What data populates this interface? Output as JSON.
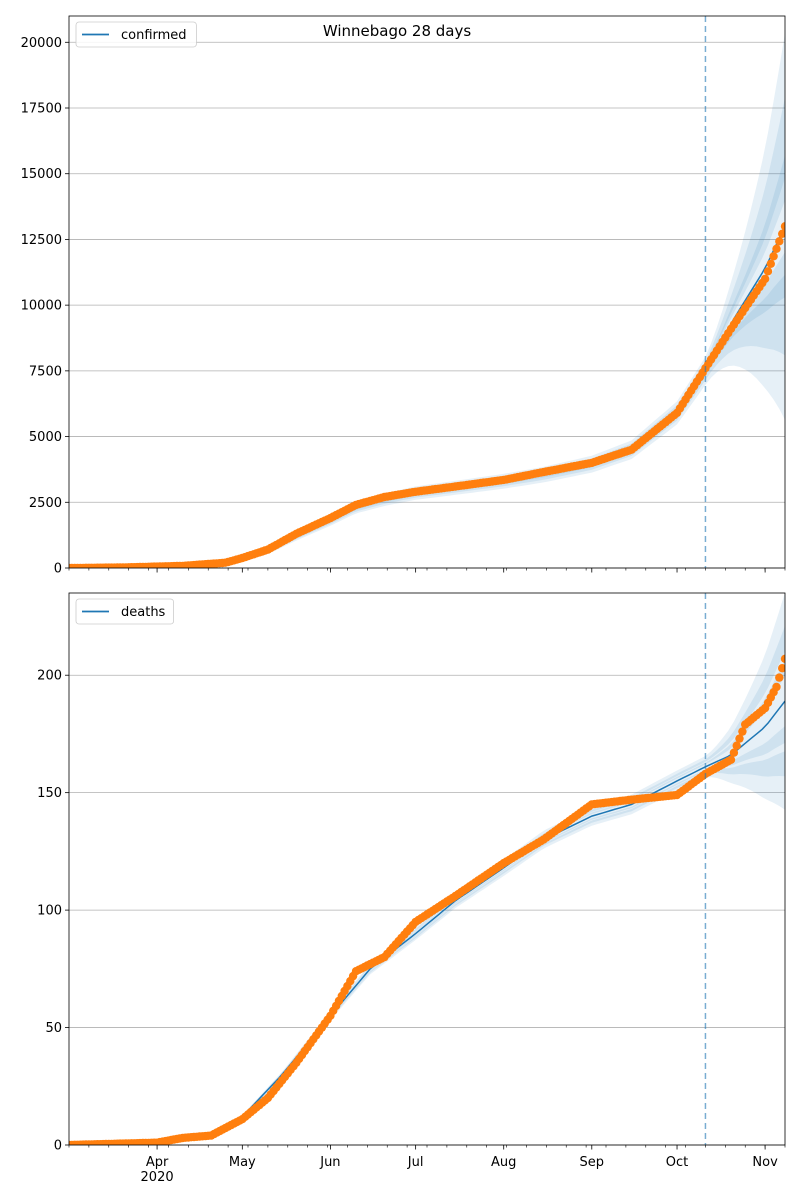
{
  "chart_data": [
    {
      "type": "line",
      "title": "Winnebago 28 days",
      "xlabel": "",
      "ylabel": "",
      "x_range": [
        "2020-03-01",
        "2020-11-08"
      ],
      "ylim": [
        0,
        21000
      ],
      "yticks": [
        0,
        2500,
        5000,
        7500,
        10000,
        12500,
        15000,
        17500,
        20000
      ],
      "grid": "horizontal",
      "legend": "top-left",
      "forecast_start": "2020-10-11",
      "series": [
        {
          "name": "confirmed",
          "kind": "model-line",
          "color": "#1f77b4",
          "points": [
            [
              "2020-03-01",
              0
            ],
            [
              "2020-03-20",
              20
            ],
            [
              "2020-04-10",
              80
            ],
            [
              "2020-04-25",
              200
            ],
            [
              "2020-05-01",
              350
            ],
            [
              "2020-05-10",
              650
            ],
            [
              "2020-05-20",
              1200
            ],
            [
              "2020-06-01",
              1800
            ],
            [
              "2020-06-10",
              2300
            ],
            [
              "2020-06-20",
              2600
            ],
            [
              "2020-07-01",
              2850
            ],
            [
              "2020-07-15",
              3050
            ],
            [
              "2020-08-01",
              3300
            ],
            [
              "2020-08-15",
              3550
            ],
            [
              "2020-09-01",
              3950
            ],
            [
              "2020-09-15",
              4500
            ],
            [
              "2020-10-01",
              5900
            ],
            [
              "2020-10-11",
              7500
            ],
            [
              "2020-10-20",
              9300
            ],
            [
              "2020-11-01",
              11400
            ],
            [
              "2020-11-08",
              13000
            ]
          ]
        },
        {
          "name": "",
          "kind": "observed-points",
          "color": "#ff7f0e",
          "points": [
            [
              "2020-03-01",
              0
            ],
            [
              "2020-03-20",
              20
            ],
            [
              "2020-04-10",
              80
            ],
            [
              "2020-04-25",
              200
            ],
            [
              "2020-05-01",
              380
            ],
            [
              "2020-05-10",
              700
            ],
            [
              "2020-05-20",
              1300
            ],
            [
              "2020-06-01",
              1900
            ],
            [
              "2020-06-10",
              2400
            ],
            [
              "2020-06-20",
              2700
            ],
            [
              "2020-07-01",
              2900
            ],
            [
              "2020-07-15",
              3100
            ],
            [
              "2020-08-01",
              3350
            ],
            [
              "2020-08-15",
              3650
            ],
            [
              "2020-09-01",
              4000
            ],
            [
              "2020-09-15",
              4500
            ],
            [
              "2020-10-01",
              5900
            ],
            [
              "2020-10-11",
              7600
            ],
            [
              "2020-10-20",
              9100
            ],
            [
              "2020-11-01",
              11000
            ],
            [
              "2020-11-08",
              13000
            ]
          ]
        }
      ],
      "bands": [
        {
          "inner": 0.15,
          "outer": 0.6
        },
        {
          "inner": 0.08,
          "outer": 0.4
        },
        {
          "inner": 0.0,
          "outer": 0.22
        }
      ]
    },
    {
      "type": "line",
      "title": "",
      "xlabel": "",
      "ylabel": "",
      "x_range": [
        "2020-03-01",
        "2020-11-08"
      ],
      "ylim": [
        0,
        235
      ],
      "yticks": [
        0,
        50,
        100,
        150,
        200
      ],
      "xticks": [
        "Apr\n2020",
        "May",
        "Jun",
        "Jul",
        "Aug",
        "Sep",
        "Oct",
        "Nov"
      ],
      "xtick_dates": [
        "2020-04-01",
        "2020-05-01",
        "2020-06-01",
        "2020-07-01",
        "2020-08-01",
        "2020-09-01",
        "2020-10-01",
        "2020-11-01"
      ],
      "grid": "horizontal",
      "legend": "top-left",
      "forecast_start": "2020-10-11",
      "series": [
        {
          "name": "deaths",
          "kind": "model-line",
          "color": "#1f77b4",
          "points": [
            [
              "2020-03-01",
              0
            ],
            [
              "2020-04-01",
              1
            ],
            [
              "2020-04-20",
              4
            ],
            [
              "2020-05-01",
              12
            ],
            [
              "2020-05-15",
              30
            ],
            [
              "2020-06-01",
              55
            ],
            [
              "2020-06-15",
              75
            ],
            [
              "2020-07-01",
              90
            ],
            [
              "2020-07-15",
              104
            ],
            [
              "2020-08-01",
              118
            ],
            [
              "2020-08-15",
              130
            ],
            [
              "2020-09-01",
              140
            ],
            [
              "2020-09-15",
              145
            ],
            [
              "2020-10-01",
              155
            ],
            [
              "2020-10-11",
              161
            ],
            [
              "2020-10-20",
              166
            ],
            [
              "2020-11-01",
              178
            ],
            [
              "2020-11-08",
              189
            ]
          ]
        },
        {
          "name": "",
          "kind": "observed-points",
          "color": "#ff7f0e",
          "points": [
            [
              "2020-03-01",
              0
            ],
            [
              "2020-04-01",
              1
            ],
            [
              "2020-04-10",
              3
            ],
            [
              "2020-04-20",
              4
            ],
            [
              "2020-05-01",
              11
            ],
            [
              "2020-05-10",
              20
            ],
            [
              "2020-05-20",
              35
            ],
            [
              "2020-06-01",
              55
            ],
            [
              "2020-06-10",
              74
            ],
            [
              "2020-06-20",
              80
            ],
            [
              "2020-07-01",
              95
            ],
            [
              "2020-07-15",
              106
            ],
            [
              "2020-08-01",
              120
            ],
            [
              "2020-08-15",
              130
            ],
            [
              "2020-09-01",
              145
            ],
            [
              "2020-09-15",
              147
            ],
            [
              "2020-10-01",
              149
            ],
            [
              "2020-10-11",
              158
            ],
            [
              "2020-10-20",
              164
            ],
            [
              "2020-10-25",
              179
            ],
            [
              "2020-11-01",
              186
            ],
            [
              "2020-11-05",
              195
            ],
            [
              "2020-11-08",
              207
            ]
          ]
        }
      ],
      "bands": [
        {
          "inner": 0.12,
          "outer": 0.26
        },
        {
          "inner": 0.06,
          "outer": 0.18
        },
        {
          "inner": 0.0,
          "outer": 0.1
        }
      ]
    }
  ]
}
